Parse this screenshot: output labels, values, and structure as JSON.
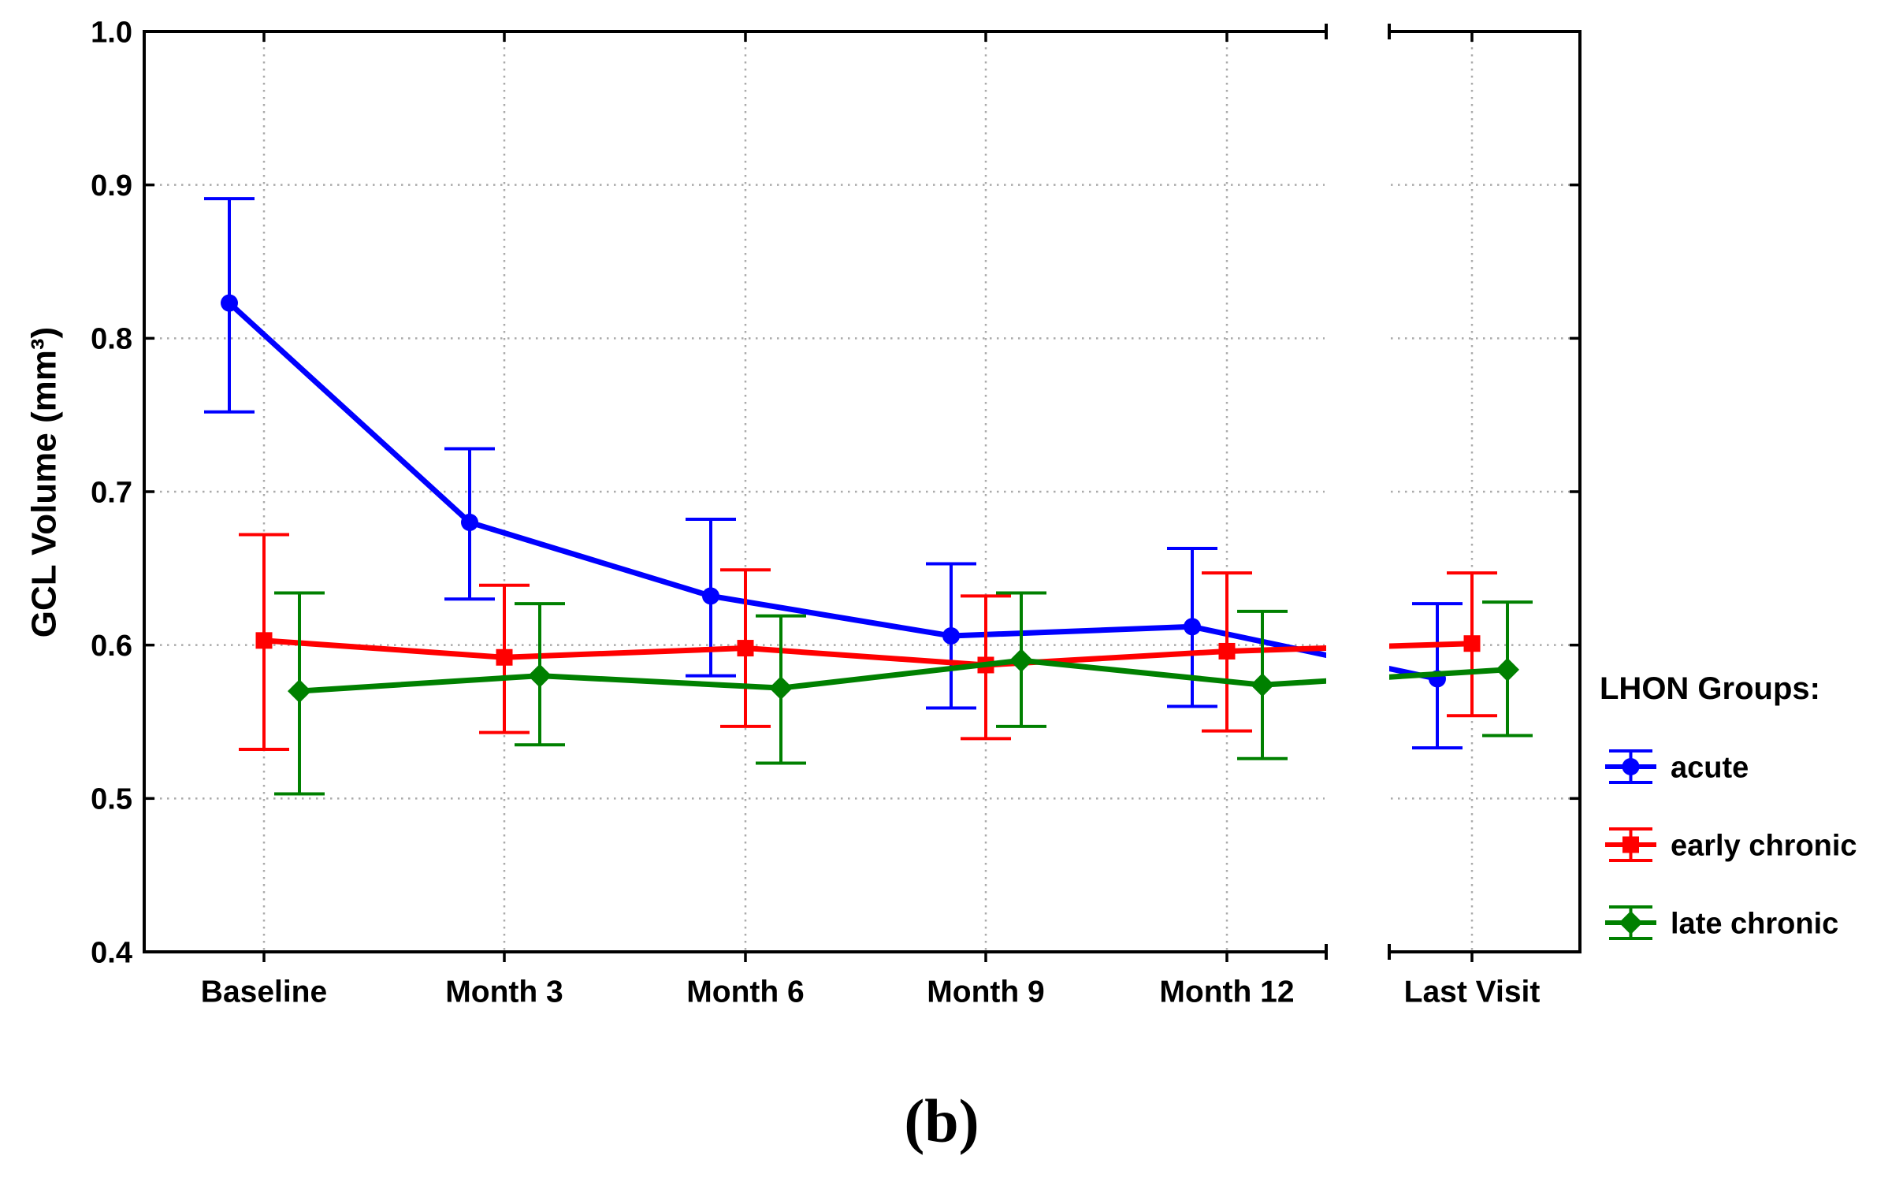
{
  "figure": {
    "caption": "(b)"
  },
  "chart_data": {
    "type": "line",
    "title": "",
    "xlabel": "",
    "ylabel": "GCL Volume (mm³)",
    "ylim": [
      0.4,
      1.0
    ],
    "y_ticks": [
      1.0,
      0.9,
      0.8,
      0.7,
      0.6,
      0.5,
      0.4
    ],
    "y_tick_labels": [
      "1.0",
      "0.9",
      "0.8",
      "0.7",
      "0.6",
      "0.5",
      "0.4"
    ],
    "grid": "dotted horizontal and vertical gridlines at ticks",
    "grid_color": "#aaaaaa",
    "axis_color": "#000000",
    "panel_break": "between Month 12 and Last Visit (broken x-axis, two panels)",
    "legend_title": "LHON Groups:",
    "legend_position": "right",
    "categories": [
      "Baseline",
      "Month 3",
      "Month 6",
      "Month 9",
      "Month 12",
      "Last Visit"
    ],
    "error_bars": "whiskers with caps, per point",
    "series": [
      {
        "name": "acute",
        "color": "#0000ff",
        "marker": "circle",
        "means": [
          0.823,
          0.68,
          0.632,
          0.606,
          0.612,
          0.578
        ],
        "ci_low": [
          0.752,
          0.63,
          0.58,
          0.559,
          0.56,
          0.533
        ],
        "ci_high": [
          0.891,
          0.728,
          0.682,
          0.653,
          0.663,
          0.627
        ]
      },
      {
        "name": "early chronic",
        "color": "#ff0000",
        "marker": "square",
        "means": [
          0.603,
          0.592,
          0.598,
          0.587,
          0.596,
          0.601
        ],
        "ci_low": [
          0.532,
          0.543,
          0.547,
          0.539,
          0.544,
          0.554
        ],
        "ci_high": [
          0.672,
          0.639,
          0.649,
          0.632,
          0.647,
          0.647
        ]
      },
      {
        "name": "late chronic",
        "color": "#008000",
        "marker": "diamond",
        "means": [
          0.57,
          0.58,
          0.572,
          0.59,
          0.574,
          0.584
        ],
        "ci_low": [
          0.503,
          0.535,
          0.523,
          0.547,
          0.526,
          0.541
        ],
        "ci_high": [
          0.634,
          0.627,
          0.619,
          0.634,
          0.622,
          0.628
        ]
      }
    ]
  }
}
